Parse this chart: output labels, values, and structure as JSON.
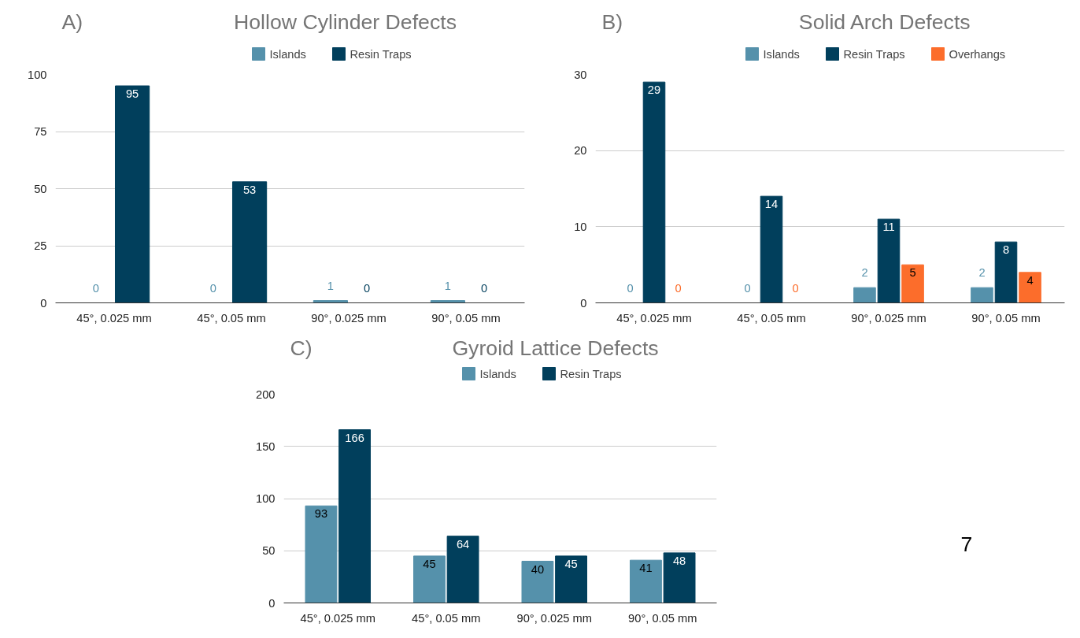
{
  "chart_data": [
    {
      "type": "bar",
      "title": "Hollow Cylinder Defects",
      "annotations": [
        "A)"
      ],
      "categories": [
        "45°, 0.025 mm",
        "45°, 0.05 mm",
        "90°, 0.025 mm",
        "90°, 0.05 mm"
      ],
      "series": [
        {
          "name": "Islands",
          "color": "#5591ab",
          "values": [
            0,
            0,
            1,
            1
          ]
        },
        {
          "name": "Resin Traps",
          "color": "#013f5c",
          "values": [
            95,
            53,
            0,
            0
          ]
        }
      ],
      "ylim": [
        0,
        100
      ],
      "yticks": [
        0,
        25,
        50,
        75,
        100
      ],
      "grid": "y",
      "legend": "top",
      "data_labels": true
    },
    {
      "type": "bar",
      "title": "Solid Arch Defects",
      "annotations": [
        "B)"
      ],
      "categories": [
        "45°, 0.025 mm",
        "45°, 0.05 mm",
        "90°, 0.025 mm",
        "90°, 0.05 mm"
      ],
      "series": [
        {
          "name": "Islands",
          "color": "#5591ab",
          "values": [
            0,
            0,
            2,
            2
          ]
        },
        {
          "name": "Resin Traps",
          "color": "#013f5c",
          "values": [
            29,
            14,
            11,
            8
          ]
        },
        {
          "name": "Overhangs",
          "color": "#fc6d2b",
          "values": [
            0,
            0,
            5,
            4
          ]
        }
      ],
      "ylim": [
        0,
        30
      ],
      "yticks": [
        0,
        10,
        20,
        30
      ],
      "grid": "y",
      "legend": "top",
      "data_labels": true
    },
    {
      "type": "bar",
      "title": "Gyroid Lattice Defects",
      "annotations": [
        "C)",
        "7"
      ],
      "categories": [
        "45°, 0.025 mm",
        "45°, 0.05 mm",
        "90°, 0.025 mm",
        "90°, 0.05 mm"
      ],
      "series": [
        {
          "name": "Islands",
          "color": "#5591ab",
          "values": [
            93,
            45,
            40,
            41
          ]
        },
        {
          "name": "Resin Traps",
          "color": "#013f5c",
          "values": [
            166,
            64,
            45,
            48
          ]
        }
      ],
      "ylim": [
        0,
        200
      ],
      "yticks": [
        0,
        50,
        100,
        150,
        200
      ],
      "grid": "y",
      "legend": "top",
      "data_labels": true
    }
  ]
}
